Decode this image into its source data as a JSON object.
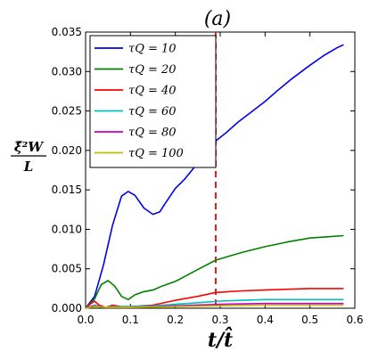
{
  "chart_data": {
    "type": "line",
    "title": "(a)",
    "xlabel": "t/t̂",
    "ylabel_num": "ξ̂²W",
    "ylabel_den": "L",
    "xlim": [
      0.0,
      0.6
    ],
    "ylim": [
      0.0,
      0.035
    ],
    "x_ticks": [
      "0.0",
      "0.1",
      "0.2",
      "0.3",
      "0.4",
      "0.5",
      "0.6"
    ],
    "y_ticks": [
      "0.000",
      "0.005",
      "0.010",
      "0.015",
      "0.020",
      "0.025",
      "0.030",
      "0.035"
    ],
    "grid": false,
    "legend_position": "upper-left",
    "vline": {
      "x": 0.29,
      "color": "#e8191c",
      "style": "dashed"
    },
    "series": [
      {
        "name": "τQ = 10",
        "color": "#0000ee",
        "points": [
          [
            0.0,
            0.0
          ],
          [
            0.02,
            0.0015
          ],
          [
            0.04,
            0.0055
          ],
          [
            0.06,
            0.0105
          ],
          [
            0.08,
            0.0142
          ],
          [
            0.095,
            0.0148
          ],
          [
            0.11,
            0.0143
          ],
          [
            0.13,
            0.0127
          ],
          [
            0.15,
            0.0119
          ],
          [
            0.165,
            0.0122
          ],
          [
            0.18,
            0.0135
          ],
          [
            0.2,
            0.0152
          ],
          [
            0.22,
            0.0163
          ],
          [
            0.25,
            0.0184
          ],
          [
            0.27,
            0.02
          ],
          [
            0.29,
            0.0212
          ],
          [
            0.31,
            0.0221
          ],
          [
            0.34,
            0.0236
          ],
          [
            0.37,
            0.0249
          ],
          [
            0.4,
            0.0262
          ],
          [
            0.43,
            0.0277
          ],
          [
            0.46,
            0.0291
          ],
          [
            0.5,
            0.0308
          ],
          [
            0.53,
            0.032
          ],
          [
            0.56,
            0.033
          ],
          [
            0.575,
            0.0334
          ]
        ]
      },
      {
        "name": "τQ = 20",
        "color": "#008000",
        "points": [
          [
            0.0,
            0.0
          ],
          [
            0.02,
            0.0012
          ],
          [
            0.035,
            0.003
          ],
          [
            0.05,
            0.0035
          ],
          [
            0.065,
            0.0028
          ],
          [
            0.08,
            0.0015
          ],
          [
            0.095,
            0.0011
          ],
          [
            0.11,
            0.0017
          ],
          [
            0.13,
            0.0021
          ],
          [
            0.15,
            0.0023
          ],
          [
            0.17,
            0.0028
          ],
          [
            0.2,
            0.0034
          ],
          [
            0.25,
            0.0049
          ],
          [
            0.29,
            0.0061
          ],
          [
            0.35,
            0.0071
          ],
          [
            0.4,
            0.0078
          ],
          [
            0.45,
            0.0084
          ],
          [
            0.5,
            0.0089
          ],
          [
            0.55,
            0.0091
          ],
          [
            0.575,
            0.0092
          ]
        ]
      },
      {
        "name": "τQ = 40",
        "color": "#ff0000",
        "points": [
          [
            0.0,
            0.0
          ],
          [
            0.01,
            0.0005
          ],
          [
            0.02,
            0.0009
          ],
          [
            0.03,
            0.0004
          ],
          [
            0.045,
            0.0001
          ],
          [
            0.06,
            0.0004
          ],
          [
            0.08,
            0.0002
          ],
          [
            0.1,
            0.0002
          ],
          [
            0.15,
            0.0004
          ],
          [
            0.2,
            0.001
          ],
          [
            0.25,
            0.0015
          ],
          [
            0.29,
            0.002
          ],
          [
            0.35,
            0.0022
          ],
          [
            0.4,
            0.0023
          ],
          [
            0.45,
            0.0024
          ],
          [
            0.5,
            0.0025
          ],
          [
            0.575,
            0.0025
          ]
        ]
      },
      {
        "name": "τQ = 60",
        "color": "#00bfbf",
        "points": [
          [
            0.0,
            0.0
          ],
          [
            0.02,
            0.0004
          ],
          [
            0.04,
            0.0001
          ],
          [
            0.06,
            0.0002
          ],
          [
            0.1,
            0.0002
          ],
          [
            0.15,
            0.0003
          ],
          [
            0.2,
            0.0005
          ],
          [
            0.25,
            0.0007
          ],
          [
            0.3,
            0.0009
          ],
          [
            0.35,
            0.001
          ],
          [
            0.4,
            0.0011
          ],
          [
            0.5,
            0.0011
          ],
          [
            0.575,
            0.0011
          ]
        ]
      },
      {
        "name": "τQ = 80",
        "color": "#bf00bf",
        "points": [
          [
            0.0,
            0.0
          ],
          [
            0.02,
            0.0003
          ],
          [
            0.04,
            0.0001
          ],
          [
            0.1,
            0.0001
          ],
          [
            0.2,
            0.0003
          ],
          [
            0.3,
            0.0005
          ],
          [
            0.4,
            0.0006
          ],
          [
            0.5,
            0.0006
          ],
          [
            0.575,
            0.0006
          ]
        ]
      },
      {
        "name": "τQ = 100",
        "color": "#bfbf00",
        "points": [
          [
            0.0,
            0.0
          ],
          [
            0.02,
            0.0002
          ],
          [
            0.05,
            0.0001
          ],
          [
            0.1,
            0.0001
          ],
          [
            0.2,
            0.0002
          ],
          [
            0.3,
            0.0003
          ],
          [
            0.4,
            0.0004
          ],
          [
            0.5,
            0.0004
          ],
          [
            0.575,
            0.0004
          ]
        ]
      }
    ]
  }
}
